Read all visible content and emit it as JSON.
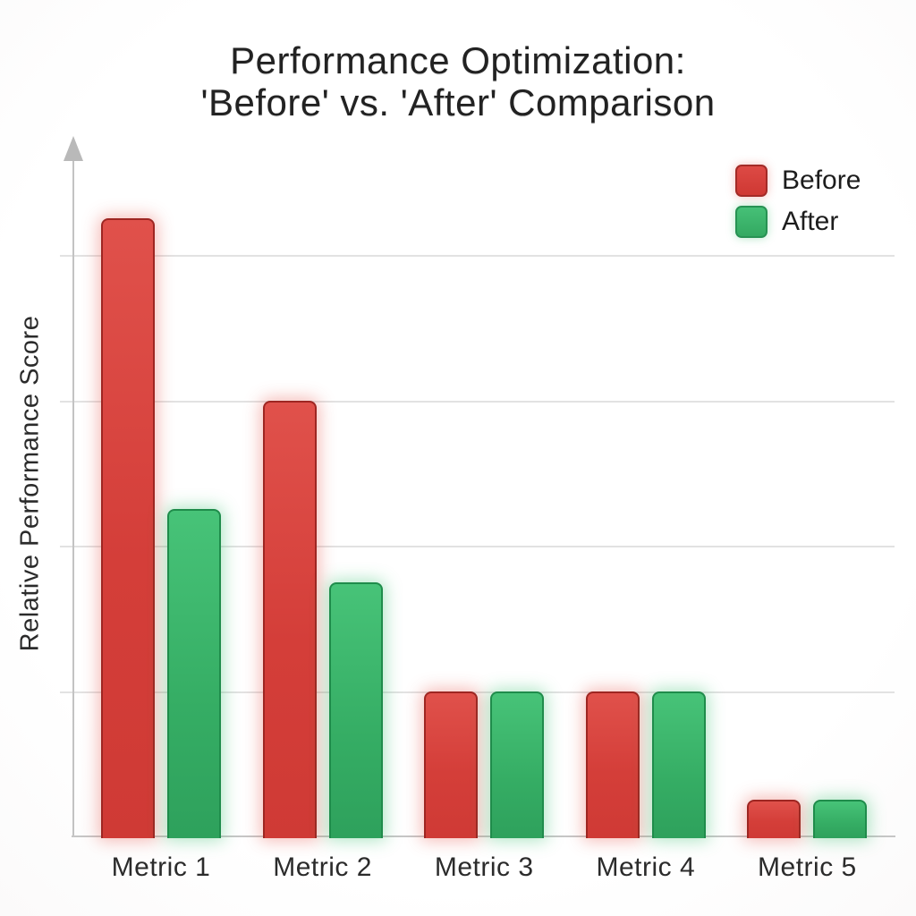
{
  "title": {
    "line1": "Performance Optimization:",
    "line2": "'Before' vs. 'After' Comparison"
  },
  "legend": {
    "position": "top-right",
    "items": [
      {
        "label": "Before",
        "color": "#d6423d"
      },
      {
        "label": "After",
        "color": "#3cba70"
      }
    ]
  },
  "chart_data": {
    "type": "bar",
    "title": "Performance Optimization: 'Before' vs. 'After' Comparison",
    "categories": [
      "Metric 1",
      "Metric 2",
      "Metric 3",
      "Metric 4",
      "Metric 5"
    ],
    "series": [
      {
        "name": "Before",
        "color": "#d6423d",
        "values": [
          85,
          60,
          20,
          20,
          5
        ]
      },
      {
        "name": "After",
        "color": "#3cba70",
        "values": [
          45,
          35,
          20,
          20,
          5
        ]
      }
    ],
    "xlabel": "",
    "ylabel": "Relative Performance Score",
    "ylim": [
      0,
      96
    ],
    "gridline_values": [
      20,
      40,
      60,
      80
    ],
    "grid": "horizontal-only",
    "axis_tick_labels_visible": false
  },
  "colors": {
    "before_fill": "#d6423d",
    "before_border": "#9e2622",
    "after_fill": "#3cba70",
    "after_border": "#1f8c4b",
    "gridline": "#e2e2e2",
    "axis": "#c3c3c3",
    "text": "#252525",
    "background": "#ffffff"
  }
}
